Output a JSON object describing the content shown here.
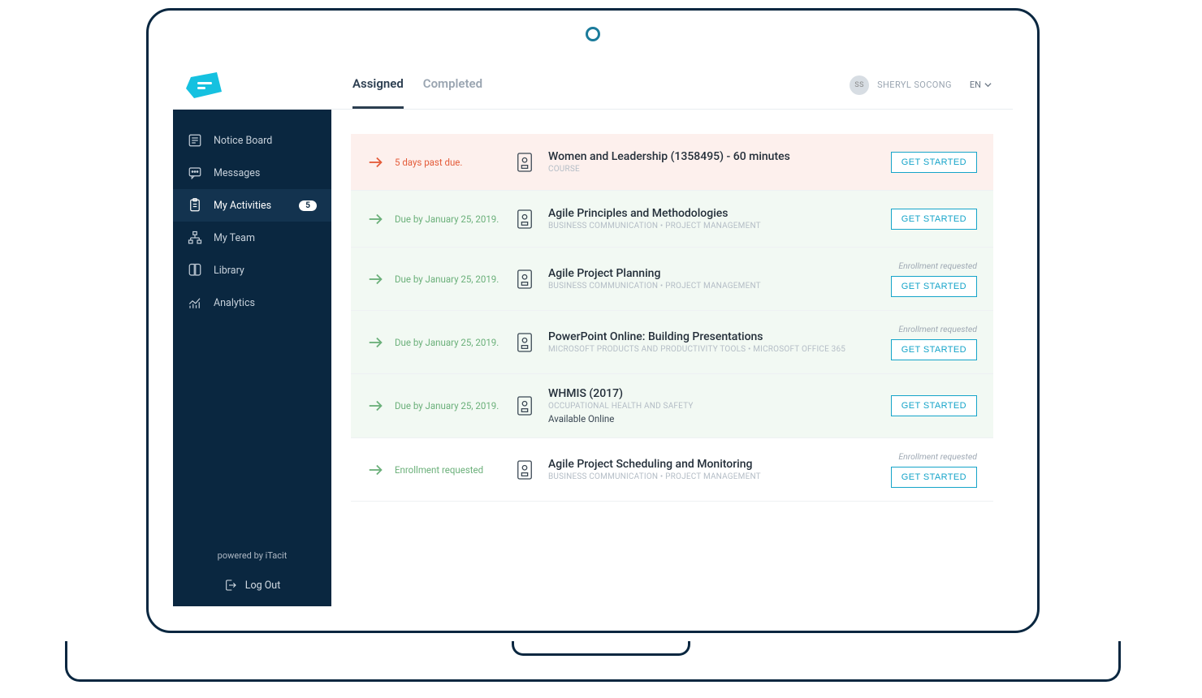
{
  "colors": {
    "sidebar_bg": "#0a2740",
    "sidebar_active_bg": "#13334f",
    "accent": "#15a4c9",
    "pastdue_bg": "#fdf0ed",
    "due_bg": "#f2f9f3",
    "pastdue_text": "#e45c3a",
    "due_text": "#6bb07a",
    "text_primary": "#242f3a",
    "text_muted": "#9aa5b1"
  },
  "sidebar": {
    "items": [
      {
        "label": "Notice Board",
        "icon": "notice-board"
      },
      {
        "label": "Messages",
        "icon": "messages"
      },
      {
        "label": "My Activities",
        "icon": "activities",
        "badge": "5",
        "active": true
      },
      {
        "label": "My Team",
        "icon": "team"
      },
      {
        "label": "Library",
        "icon": "library"
      },
      {
        "label": "Analytics",
        "icon": "analytics"
      }
    ],
    "powered": "powered by iTacit",
    "logout": "Log Out"
  },
  "header": {
    "tabs": [
      {
        "label": "Assigned",
        "active": true
      },
      {
        "label": "Completed",
        "active": false
      }
    ],
    "user": {
      "initials": "SS",
      "name": "SHERYL SOCONG"
    },
    "lang": "EN"
  },
  "buttons": {
    "get_started": "GET STARTED"
  },
  "enroll_note": "Enrollment requested",
  "activities": [
    {
      "status_type": "pastdue",
      "status_text": "5 days past due.",
      "title": "Women and Leadership (1358495) - 60 minutes",
      "meta": "COURSE",
      "sub": "",
      "enroll_note": false
    },
    {
      "status_type": "due",
      "status_text": "Due by January 25, 2019.",
      "title": "Agile Principles and Methodologies",
      "meta": "BUSINESS COMMUNICATION • PROJECT MANAGEMENT",
      "sub": "",
      "enroll_note": false
    },
    {
      "status_type": "due",
      "status_text": "Due by January 25, 2019.",
      "title": "Agile Project Planning",
      "meta": "BUSINESS COMMUNICATION • PROJECT MANAGEMENT",
      "sub": "",
      "enroll_note": true
    },
    {
      "status_type": "due",
      "status_text": "Due by January 25, 2019.",
      "title": "PowerPoint Online: Building Presentations",
      "meta": "MICROSOFT PRODUCTS AND PRODUCTIVITY TOOLS • MICROSOFT OFFICE 365",
      "sub": "",
      "enroll_note": true
    },
    {
      "status_type": "due",
      "status_text": "Due by January 25, 2019.",
      "title": "WHMIS (2017)",
      "meta": "OCCUPATIONAL HEALTH AND SAFETY",
      "sub": "Available Online",
      "enroll_note": false
    },
    {
      "status_type": "plain",
      "status_text": "Enrollment requested",
      "title": "Agile Project Scheduling and Monitoring",
      "meta": "BUSINESS COMMUNICATION • PROJECT MANAGEMENT",
      "sub": "",
      "enroll_note": true
    }
  ]
}
